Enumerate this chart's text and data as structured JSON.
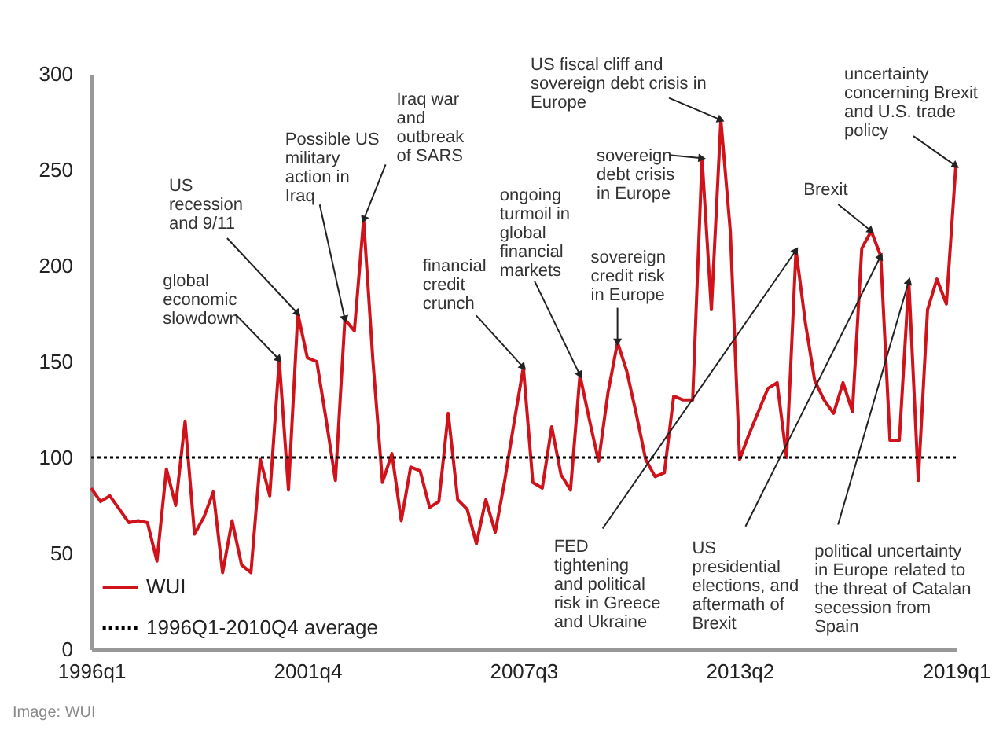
{
  "chart_data": {
    "type": "line",
    "x": [
      "1996-01",
      "1996-04",
      "1996-07",
      "1996-10",
      "1997-01",
      "1997-04",
      "1997-07",
      "1997-10",
      "1998-01",
      "1998-04",
      "1998-07",
      "1998-10",
      "1999-01",
      "1999-04",
      "1999-07",
      "1999-10",
      "2000-01",
      "2000-04",
      "2000-07",
      "2000-10",
      "2001-01",
      "2001-04",
      "2001-07",
      "2001-10",
      "2002-01",
      "2002-04",
      "2002-07",
      "2002-10",
      "2003-01",
      "2003-04",
      "2003-07",
      "2003-10",
      "2004-01",
      "2004-04",
      "2004-07",
      "2004-10",
      "2005-01",
      "2005-04",
      "2005-07",
      "2005-10",
      "2006-01",
      "2006-04",
      "2006-07",
      "2006-10",
      "2007-01",
      "2007-04",
      "2007-07",
      "2007-10",
      "2008-01",
      "2008-04",
      "2008-07",
      "2008-10",
      "2009-01",
      "2009-04",
      "2009-07",
      "2009-10",
      "2010-01",
      "2010-04",
      "2010-07",
      "2010-10",
      "2011-01",
      "2011-04",
      "2011-07",
      "2011-10",
      "2012-01",
      "2012-04",
      "2012-07",
      "2012-10",
      "2013-01",
      "2013-04",
      "2013-07",
      "2013-10",
      "2014-01",
      "2014-04",
      "2014-07",
      "2014-10",
      "2015-01",
      "2015-04",
      "2015-07",
      "2015-10",
      "2016-01",
      "2016-04",
      "2016-07",
      "2016-10",
      "2017-01",
      "2017-04",
      "2017-07",
      "2017-10",
      "2018-01",
      "2018-04",
      "2018-07",
      "2018-10",
      "2019-01"
    ],
    "series": [
      {
        "name": "WUI",
        "color": "#d0121b",
        "values": [
          84,
          77,
          80,
          73,
          66,
          67,
          66,
          46,
          94,
          75,
          119,
          60,
          69,
          82,
          40,
          67,
          44,
          40,
          99,
          80,
          151,
          83,
          175,
          152,
          150,
          120,
          88,
          172,
          166,
          224,
          150,
          87,
          102,
          67,
          95,
          93,
          74,
          77,
          123,
          78,
          73,
          55,
          78,
          61,
          88,
          118,
          147,
          87,
          84,
          116,
          91,
          83,
          143,
          120,
          98,
          134,
          160,
          145,
          123,
          99,
          90,
          92,
          132,
          130,
          130,
          256,
          177,
          276,
          218,
          99,
          112,
          124,
          136,
          139,
          100,
          208,
          170,
          140,
          130,
          123,
          139,
          124,
          209,
          218,
          205,
          109,
          109,
          192,
          88,
          177,
          193,
          180,
          252
        ]
      }
    ],
    "xlim": [
      "1996-01",
      "2019-01"
    ],
    "xticks": [
      {
        "value": "1996-01",
        "label": "1996q1"
      },
      {
        "value": "2001-10",
        "label": "2001q4"
      },
      {
        "value": "2007-07",
        "label": "2007q3"
      },
      {
        "value": "2013-04",
        "label": "2013q2"
      },
      {
        "value": "2019-01",
        "label": "2019q1"
      }
    ],
    "ylim": [
      0,
      300
    ],
    "yticks": [
      0,
      50,
      100,
      150,
      200,
      250,
      300
    ],
    "ref_lines": [
      {
        "axis": "y",
        "value": 100,
        "label": "1996Q1-2010Q4 average",
        "color": "#000000",
        "line_style": "dotted"
      }
    ],
    "legend": "bottom left",
    "annotations": [
      {
        "text": "global\neconomic\nslowdown",
        "x": "2001-01",
        "y": 151
      },
      {
        "text": "US\nrecession\nand 9/11",
        "x": "2001-07",
        "y": 175
      },
      {
        "text": "Possible US\nmilitary\naction in\nIraq",
        "x": "2002-10",
        "y": 172
      },
      {
        "text": "Iraq war\nand\noutbreak\nof SARS",
        "x": "2003-04",
        "y": 224
      },
      {
        "text": "financial\ncredit\ncrunch",
        "x": "2007-07",
        "y": 147
      },
      {
        "text": "ongoing\nturmoil in\nglobal\nfinancial\nmarkets",
        "x": "2009-01",
        "y": 143
      },
      {
        "text": "sovereign\ncredit risk\nin Europe",
        "x": "2010-01",
        "y": 160
      },
      {
        "text": "sovereign\ndebt crisis\nin Europe",
        "x": "2012-04",
        "y": 256
      },
      {
        "text": "US fiscal cliff and\nsovereign debt crisis in\nEurope",
        "x": "2012-10",
        "y": 276
      },
      {
        "text": "Brexit",
        "x": "2016-10",
        "y": 218
      },
      {
        "text": "uncertainty\nconcerning Brexit\nand U.S. trade\npolicy",
        "x": "2019-01",
        "y": 252
      },
      {
        "text": "FED\ntightening\nand political\nrisk in Greece\nand Ukraine",
        "x": "2014-10",
        "y": 208
      },
      {
        "text": "US\npresidential\nelections, and\naftermath of\nBrexit",
        "x": "2017-01",
        "y": 205
      },
      {
        "text": "political uncertainty\nin Europe related to\nthe threat of Catalan\nsecession from\nSpain",
        "x": "2017-10",
        "y": 192
      },
      "Image: WUI"
    ]
  }
}
